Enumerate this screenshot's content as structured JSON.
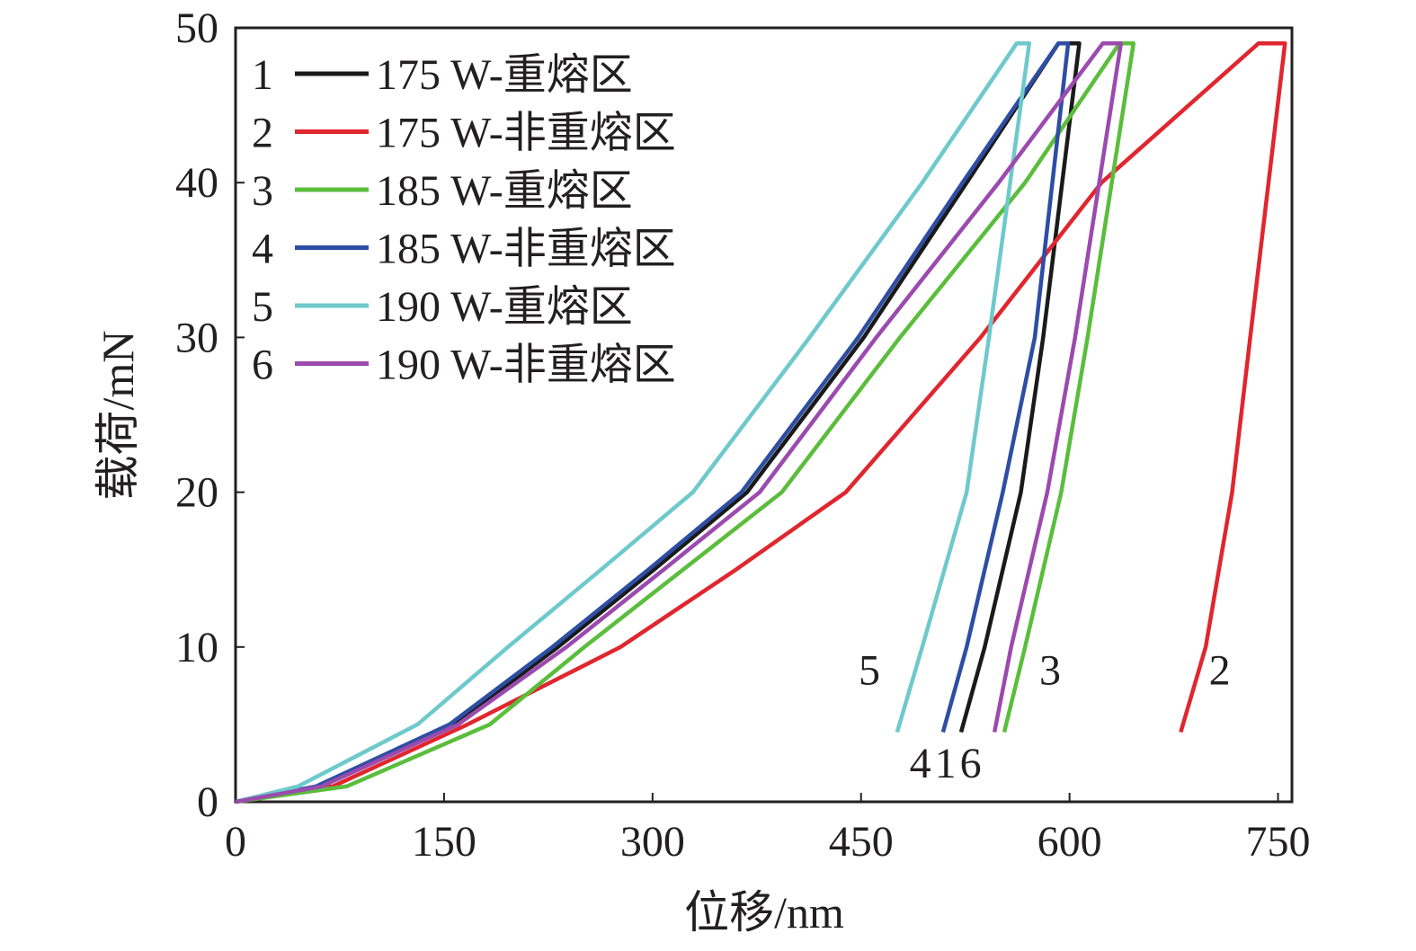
{
  "chart_data": {
    "type": "line",
    "xlabel": "位移/nm",
    "ylabel": "载荷/mN",
    "xlim": [
      0,
      760
    ],
    "ylim": [
      0,
      50
    ],
    "xticks": [
      0,
      150,
      300,
      450,
      600,
      750
    ],
    "yticks": [
      0,
      10,
      20,
      30,
      40,
      50
    ],
    "grid": false,
    "legend_position": "top-left",
    "series": [
      {
        "id": "1",
        "name": "175 W-重熔区",
        "color": "#1a1a1a",
        "x": [
          0,
          60,
          157,
          232,
          301,
          368,
          452,
          526,
          592,
          607,
          581,
          565,
          539,
          522
        ],
        "y": [
          0,
          1,
          5,
          10,
          15,
          20,
          30,
          40,
          49,
          49,
          30,
          20,
          10,
          4.5
        ]
      },
      {
        "id": "2",
        "name": "175 W-非重熔区",
        "color": "#e0262e",
        "x": [
          0,
          70,
          167,
          277,
          360,
          439,
          536,
          623,
          736,
          755,
          730,
          717,
          698,
          680
        ],
        "y": [
          0,
          1,
          5,
          10,
          15,
          20,
          30,
          40,
          49,
          49,
          30,
          20,
          10,
          4.5
        ]
      },
      {
        "id": "3",
        "name": "185 W-重熔区",
        "color": "#5bbd3c",
        "x": [
          0,
          80,
          183,
          251,
          322,
          393,
          478,
          568,
          636,
          646,
          613,
          594,
          568,
          553
        ],
        "y": [
          0,
          1,
          5,
          10,
          15,
          20,
          30,
          40,
          49,
          49,
          30,
          20,
          10,
          4.5
        ]
      },
      {
        "id": "4",
        "name": "185 W-非重熔区",
        "color": "#2e4ea3",
        "x": [
          0,
          58,
          154,
          228,
          297,
          364,
          448,
          523,
          592,
          599,
          575,
          552,
          526,
          509
        ],
        "y": [
          0,
          1,
          5,
          10,
          15,
          20,
          30,
          40,
          49,
          49,
          30,
          20,
          10,
          4.5
        ]
      },
      {
        "id": "5",
        "name": "190 W-重熔区",
        "color": "#6ec9cc",
        "x": [
          0,
          45,
          131,
          196,
          263,
          329,
          413,
          494,
          562,
          571,
          542,
          526,
          494,
          476
        ],
        "y": [
          0,
          1,
          5,
          10,
          15,
          20,
          30,
          40,
          49,
          49,
          30,
          20,
          10,
          4.5
        ]
      },
      {
        "id": "6",
        "name": "190 W-非重熔区",
        "color": "#9b4aae",
        "x": [
          0,
          62,
          160,
          238,
          308,
          377,
          461,
          549,
          624,
          637,
          604,
          584,
          558,
          546
        ],
        "y": [
          0,
          1,
          5,
          10,
          15,
          20,
          30,
          40,
          49,
          49,
          30,
          20,
          10,
          4.5
        ]
      }
    ],
    "annotations": [
      {
        "text": "5",
        "x": 456,
        "y": 8.5
      },
      {
        "text": "3",
        "x": 586,
        "y": 8.5
      },
      {
        "text": "2",
        "x": 708,
        "y": 8.5
      },
      {
        "text": "416",
        "x": 512,
        "y": 2.5
      }
    ]
  }
}
